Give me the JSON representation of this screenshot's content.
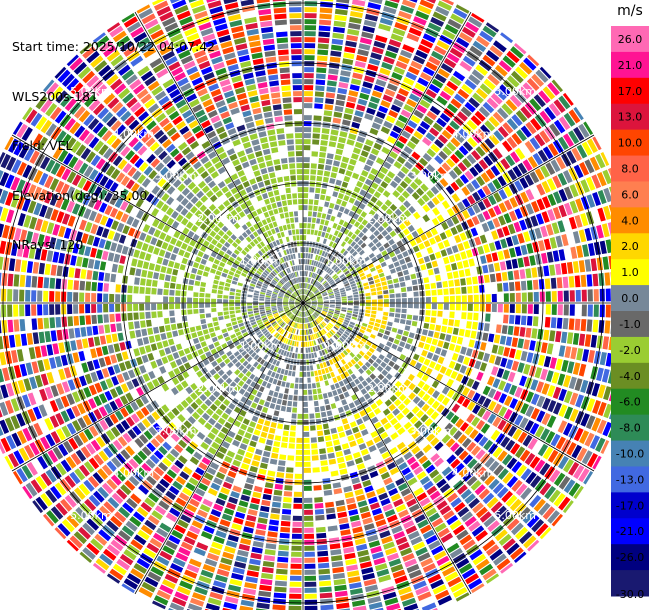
{
  "info": {
    "start_time": "Start time: 2025/10/22 04:07:42",
    "device": "WLS200s-181",
    "field": "Field: VEL",
    "elevation": "Elevation(deg): 35.00",
    "nrays": "NRays: 120"
  },
  "chart_data": {
    "type": "heatmap",
    "projection": "polar-ppi",
    "field": "VEL",
    "units": "m/s",
    "nrays": 120,
    "elevation_deg": 35.0,
    "range_rings_km": [
      1.0,
      2.0,
      3.0,
      4.0,
      5.0
    ],
    "ring_labels": [
      "1.00km",
      "2.00km",
      "3.00km",
      "4.00km",
      "5.00km"
    ],
    "max_range_km": 5.6,
    "radial_bin_km": 0.1,
    "colorbar": {
      "ticks": [
        "26.0",
        "21.0",
        "17.0",
        "13.0",
        "10.0",
        "8.0",
        "6.0",
        "4.0",
        "2.0",
        "1.0",
        "0.0",
        "-1.0",
        "-2.0",
        "-4.0",
        "-6.0",
        "-8.0",
        "-10.0",
        "-13.0",
        "-17.0",
        "-21.0",
        "-26.0",
        "-30.0"
      ],
      "colors": [
        "#ff69b4",
        "#ff1493",
        "#ff0000",
        "#dc143c",
        "#ff4500",
        "#ff6347",
        "#ff7f50",
        "#ff8c00",
        "#ffd700",
        "#ffff00",
        "#778899",
        "#696969",
        "#9acd32",
        "#6b8e23",
        "#228b22",
        "#2e8b57",
        "#4682b4",
        "#4169e1",
        "#0000cd",
        "#0000ff",
        "#000080",
        "#191970"
      ]
    },
    "description_of_pattern": {
      "near_field_0_to_1km": "mostly near-zero (grey/green) with positive yellow band to the south",
      "mid_field_1_to_3km": "green negative ring around grey core, yellow positive arc on east/southeast",
      "far_field_3_to_5.6km": "noisy full-spectrum values"
    }
  }
}
